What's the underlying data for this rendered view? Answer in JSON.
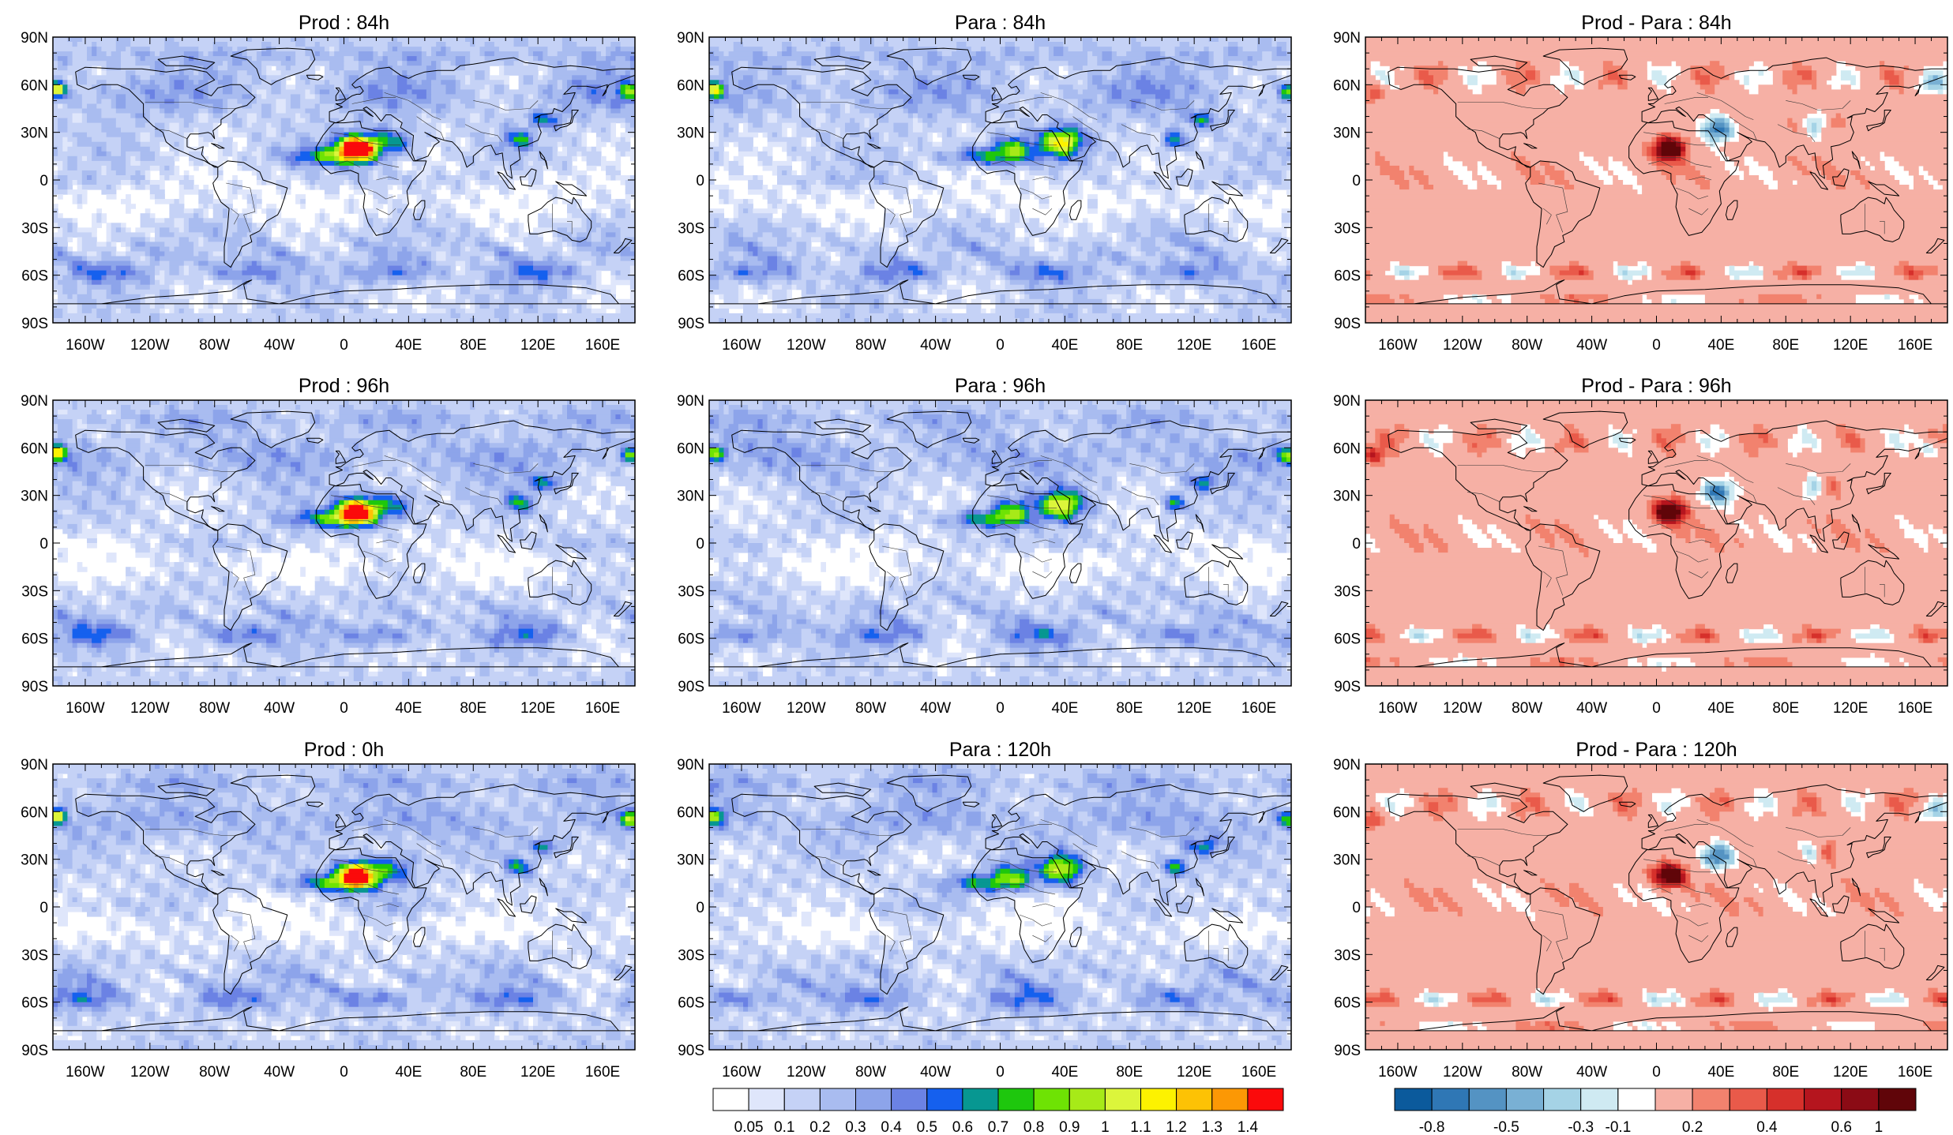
{
  "figure": {
    "panels": [
      {
        "title": "Prod : 84h",
        "kind": "field",
        "seed": 11,
        "land_hot": 1.35,
        "gulf_hot": 0.9
      },
      {
        "title": "Para : 84h",
        "kind": "field",
        "seed": 23,
        "land_hot": 1.0,
        "gulf_hot": 0.8
      },
      {
        "title": "Prod - Para : 84h",
        "kind": "diff",
        "seed": 37
      },
      {
        "title": "Prod : 96h",
        "kind": "field",
        "seed": 41,
        "land_hot": 1.3,
        "gulf_hot": 0.85
      },
      {
        "title": "Para : 96h",
        "kind": "field",
        "seed": 53,
        "land_hot": 0.95,
        "gulf_hot": 0.75
      },
      {
        "title": "Prod - Para : 96h",
        "kind": "diff",
        "seed": 67
      },
      {
        "title": "Prod : 0h",
        "kind": "field",
        "seed": 71,
        "land_hot": 1.25,
        "gulf_hot": 0.9
      },
      {
        "title": "Para : 120h",
        "kind": "field",
        "seed": 83,
        "land_hot": 0.9,
        "gulf_hot": 0.7
      },
      {
        "title": "Prod - Para : 120h",
        "kind": "diff",
        "seed": 97
      }
    ],
    "lon_ticks": [
      "160W",
      "120W",
      "80W",
      "40W",
      "0",
      "40E",
      "80E",
      "120E",
      "160E"
    ],
    "lon_values": [
      -160,
      -120,
      -80,
      -40,
      0,
      40,
      80,
      120,
      160
    ],
    "lat_ticks": [
      "90N",
      "60N",
      "30N",
      "0",
      "30S",
      "60S",
      "90S"
    ],
    "lat_values": [
      90,
      60,
      30,
      0,
      -30,
      -60,
      -90
    ]
  },
  "chart_data": {
    "type": "heatmap",
    "projection": "cylindrical equidistant, global, 180W-180E, 90S-90N",
    "panel_titles": [
      "Prod : 84h",
      "Para : 84h",
      "Prod - Para : 84h",
      "Prod : 96h",
      "Para : 96h",
      "Prod - Para : 96h",
      "Prod : 0h",
      "Para : 120h",
      "Prod - Para : 120h"
    ],
    "grid": "3x3",
    "colorbar_main": {
      "levels": [
        0.05,
        0.1,
        0.2,
        0.3,
        0.4,
        0.5,
        0.6,
        0.7,
        0.8,
        0.9,
        1,
        1.1,
        1.2,
        1.3,
        1.4
      ],
      "labels": [
        "0.05",
        "0.1",
        "0.2",
        "0.3",
        "0.4",
        "0.5",
        "0.6",
        "0.7",
        "0.8",
        "0.9",
        "1",
        "1.1",
        "1.2",
        "1.3",
        "1.4"
      ],
      "colors": [
        "#ffffff",
        "#dfe6fb",
        "#c5d2f6",
        "#a9bcf0",
        "#8da4ea",
        "#6b82e4",
        "#1560ee",
        "#079791",
        "#1ec70d",
        "#6ee304",
        "#a7ea18",
        "#dcf53b",
        "#fdf200",
        "#fdc205",
        "#fc9805",
        "#fb0a0b"
      ]
    },
    "colorbar_diff": {
      "labels": [
        "-0.8",
        "-0.5",
        "-0.3",
        "-0.1",
        "0.2",
        "0.4",
        "0.6",
        "1"
      ],
      "colors": [
        "#0b5a9c",
        "#2f77b5",
        "#5493c3",
        "#79b0d4",
        "#a5d3e6",
        "#cfeaf2",
        "#ffffff",
        "#f6b0a5",
        "#f2826e",
        "#e95a4a",
        "#d6302b",
        "#b5151e",
        "#8b0b15",
        "#600509"
      ]
    },
    "extremes_note": "Highest values over North Africa / Sahara dust region (up to ~1.4); differences range about -0.8 to 1"
  }
}
